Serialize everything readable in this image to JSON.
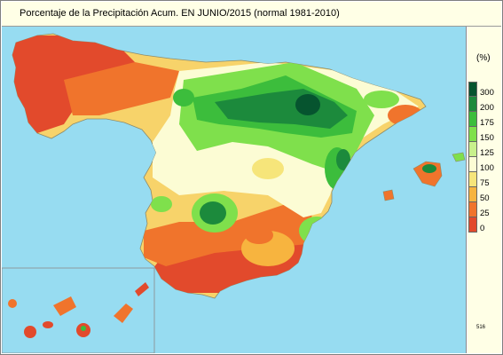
{
  "header": {
    "title": "Porcentaje de la Precipitación Acum. EN  JUNIO/2015  (normal 1981-2010)"
  },
  "legend": {
    "unit": "(%)",
    "classes": [
      {
        "label": "300",
        "color": "#06542f"
      },
      {
        "label": "200",
        "color": "#1c8a3c"
      },
      {
        "label": "175",
        "color": "#3cbd3c"
      },
      {
        "label": "150",
        "color": "#7fe04c"
      },
      {
        "label": "125",
        "color": "#c8f08c"
      },
      {
        "label": "100",
        "color": "#fcfcd4"
      },
      {
        "label": "75",
        "color": "#f6e57a"
      },
      {
        "label": "50",
        "color": "#f7b43f"
      },
      {
        "label": "25",
        "color": "#f0742c"
      },
      {
        "label": "0",
        "color": "#e24a2c"
      }
    ]
  },
  "footer": {
    "code": "516"
  },
  "colors": {
    "sea": "#97dcf1",
    "panel": "#ffffe6",
    "border": "#7f7f7f"
  }
}
